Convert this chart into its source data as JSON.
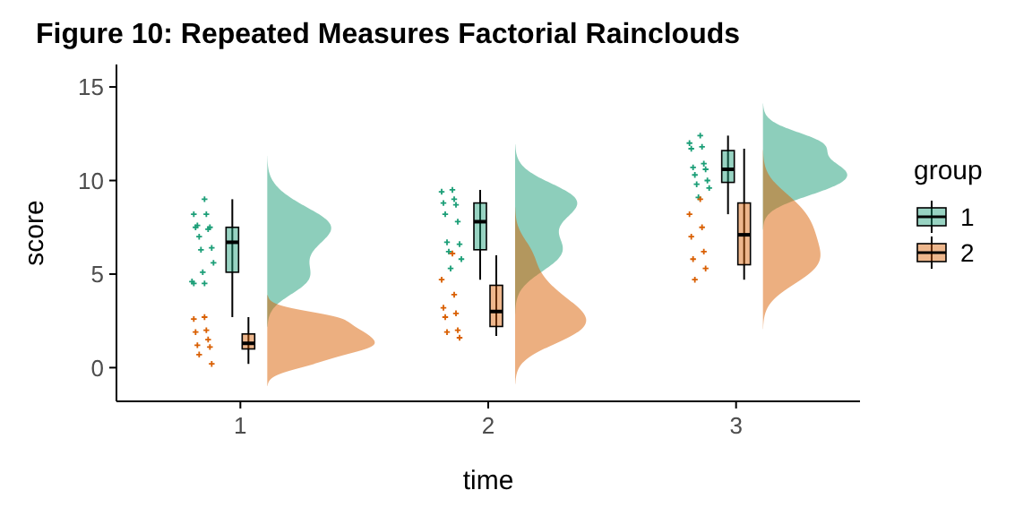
{
  "chart_data": {
    "type": "box",
    "title": "Figure 10: Repeated Measures Factorial Rainclouds",
    "xlabel": "time",
    "ylabel": "score",
    "legend_title": "group",
    "categories": [
      "1",
      "2",
      "3"
    ],
    "ylim": [
      -1.8,
      16.2
    ],
    "yticks": [
      0,
      5,
      10,
      15
    ],
    "grid": false,
    "legend": "right",
    "series": [
      {
        "name": "1",
        "color": "#1b9e77",
        "boxes": [
          {
            "low": 2.7,
            "q1": 5.1,
            "median": 6.7,
            "q3": 7.5,
            "high": 9.0
          },
          {
            "low": 4.7,
            "q1": 6.3,
            "median": 7.8,
            "q3": 8.8,
            "high": 9.5
          },
          {
            "low": 8.2,
            "q1": 9.9,
            "median": 10.6,
            "q3": 11.6,
            "high": 12.4
          }
        ]
      },
      {
        "name": "2",
        "color": "#d95f02",
        "boxes": [
          {
            "low": 0.2,
            "q1": 1.0,
            "median": 1.3,
            "q3": 1.8,
            "high": 2.7
          },
          {
            "low": 1.7,
            "q1": 2.2,
            "median": 3.0,
            "q3": 4.4,
            "high": 6.0
          },
          {
            "low": 4.7,
            "q1": 5.5,
            "median": 7.1,
            "q3": 8.8,
            "high": 11.7
          }
        ]
      },
      {
        "type": "scatter",
        "color": "#1b9e77",
        "marker": "cross",
        "x": [
          "1",
          "1",
          "1",
          "1",
          "1",
          "1",
          "1",
          "1",
          "1",
          "1",
          "1",
          "1",
          "1",
          "1",
          "1",
          "2",
          "2",
          "2",
          "2",
          "2",
          "2",
          "2",
          "2",
          "2",
          "2",
          "2",
          "2",
          "3",
          "3",
          "3",
          "3",
          "3",
          "3",
          "3",
          "3",
          "3",
          "3",
          "3",
          "3"
        ],
        "values": [
          9.0,
          8.2,
          8.2,
          7.5,
          7.4,
          7.6,
          7.5,
          7.0,
          6.4,
          6.3,
          5.6,
          5.1,
          4.6,
          4.5,
          4.5,
          9.5,
          9.4,
          9.0,
          8.8,
          8.7,
          8.2,
          7.8,
          6.7,
          6.6,
          6.2,
          5.8,
          5.3,
          12.4,
          12.0,
          11.8,
          11.7,
          10.9,
          10.7,
          10.6,
          10.3,
          10.0,
          9.8,
          9.6,
          9.1
        ]
      },
      {
        "type": "scatter",
        "color": "#d95f02",
        "marker": "cross",
        "x": [
          "1",
          "1",
          "1",
          "1",
          "1",
          "1",
          "1",
          "1",
          "1",
          "2",
          "2",
          "2",
          "2",
          "2",
          "2",
          "2",
          "2",
          "2",
          "3",
          "3",
          "3",
          "3",
          "3",
          "3",
          "3",
          "3"
        ],
        "values": [
          2.7,
          2.6,
          2.0,
          1.9,
          1.5,
          1.2,
          1.1,
          0.7,
          0.2,
          6.1,
          4.7,
          3.9,
          3.2,
          2.9,
          2.7,
          2.0,
          1.9,
          1.6,
          9.0,
          8.2,
          7.5,
          7.0,
          6.2,
          5.8,
          5.3,
          4.7
        ]
      }
    ]
  }
}
